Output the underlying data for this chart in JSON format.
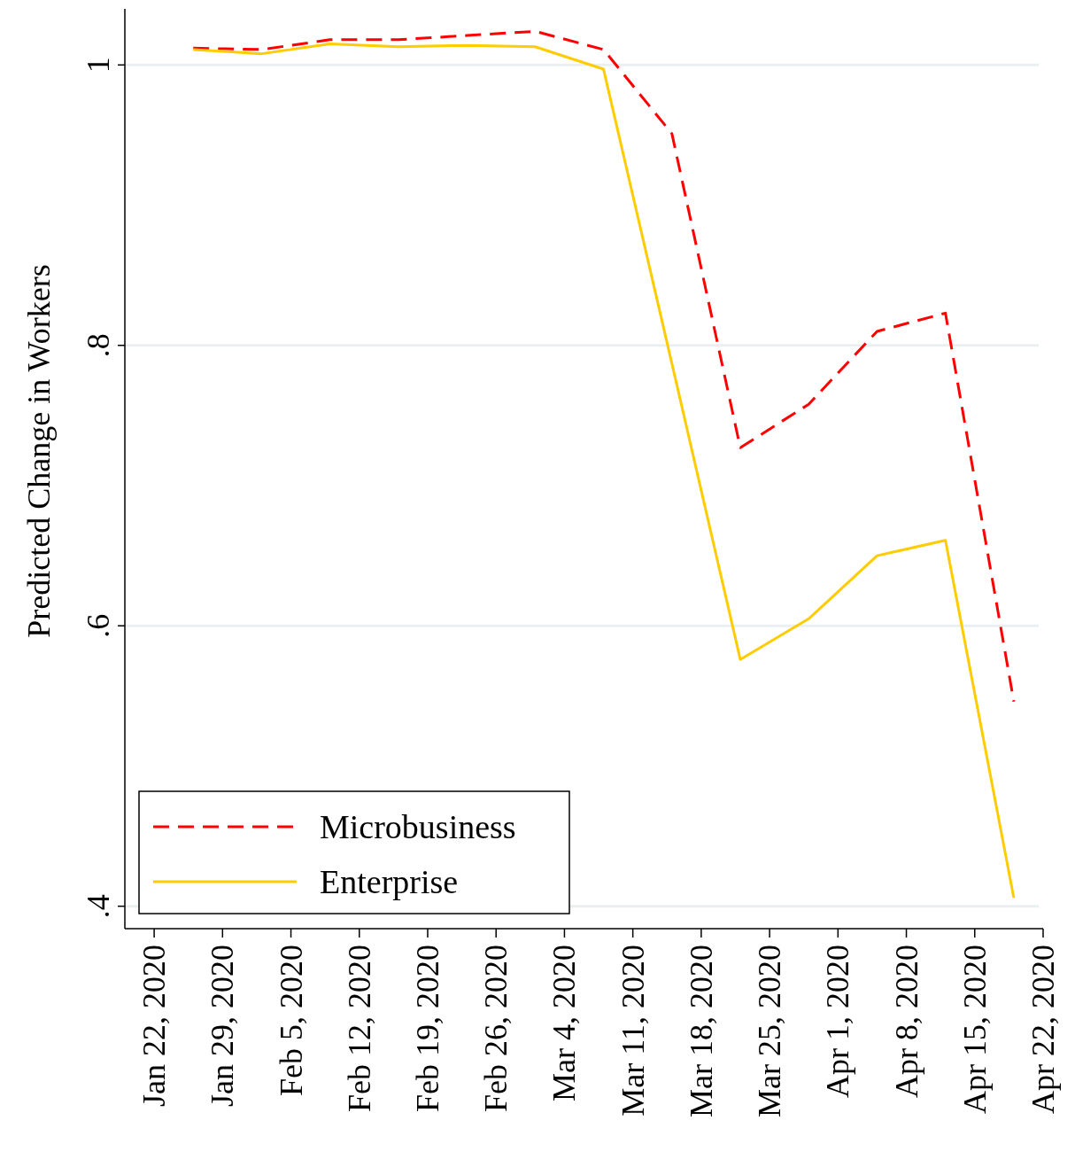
{
  "chart_data": {
    "type": "line",
    "ylabel": "Predicted Change in Workers",
    "x": [
      "2020-01-26",
      "2020-02-02",
      "2020-02-09",
      "2020-02-16",
      "2020-02-23",
      "2020-03-01",
      "2020-03-08",
      "2020-03-15",
      "2020-03-22",
      "2020-03-29",
      "2020-04-05",
      "2020-04-12",
      "2020-04-19"
    ],
    "series": [
      {
        "name": "Microbusiness",
        "color": "#ff0000",
        "line_style": "dashed",
        "values": [
          1.012,
          1.011,
          1.018,
          1.018,
          1.021,
          1.024,
          1.011,
          0.951,
          0.727,
          0.758,
          0.81,
          0.823,
          0.546
        ]
      },
      {
        "name": "Enterprise",
        "color": "#ffcc00",
        "line_style": "solid",
        "values": [
          1.011,
          1.008,
          1.015,
          1.013,
          1.014,
          1.013,
          0.997,
          0.787,
          0.576,
          0.605,
          0.65,
          0.661,
          0.406
        ]
      }
    ],
    "xlim": [
      "2020-01-19",
      "2020-04-22"
    ],
    "xticks": [
      {
        "value": "2020-01-22",
        "label": "Jan 22, 2020"
      },
      {
        "value": "2020-01-29",
        "label": "Jan 29, 2020"
      },
      {
        "value": "2020-02-05",
        "label": "Feb 5, 2020"
      },
      {
        "value": "2020-02-12",
        "label": "Feb 12, 2020"
      },
      {
        "value": "2020-02-19",
        "label": "Feb 19, 2020"
      },
      {
        "value": "2020-02-26",
        "label": "Feb 26, 2020"
      },
      {
        "value": "2020-03-04",
        "label": "Mar 4, 2020"
      },
      {
        "value": "2020-03-11",
        "label": "Mar 11, 2020"
      },
      {
        "value": "2020-03-18",
        "label": "Mar 18, 2020"
      },
      {
        "value": "2020-03-25",
        "label": "Mar 25, 2020"
      },
      {
        "value": "2020-04-01",
        "label": "Apr 1, 2020"
      },
      {
        "value": "2020-04-08",
        "label": "Apr 8, 2020"
      },
      {
        "value": "2020-04-15",
        "label": "Apr 15, 2020"
      },
      {
        "value": "2020-04-22",
        "label": "Apr 22, 2020"
      }
    ],
    "ylim": [
      0.384,
      1.04
    ],
    "yticks": [
      {
        "value": 0.4,
        "label": ".4"
      },
      {
        "value": 0.6,
        "label": ".6"
      },
      {
        "value": 0.8,
        "label": ".8"
      },
      {
        "value": 1,
        "label": "1"
      }
    ],
    "grid": "y",
    "legend": "bottom left",
    "marker": "none"
  }
}
